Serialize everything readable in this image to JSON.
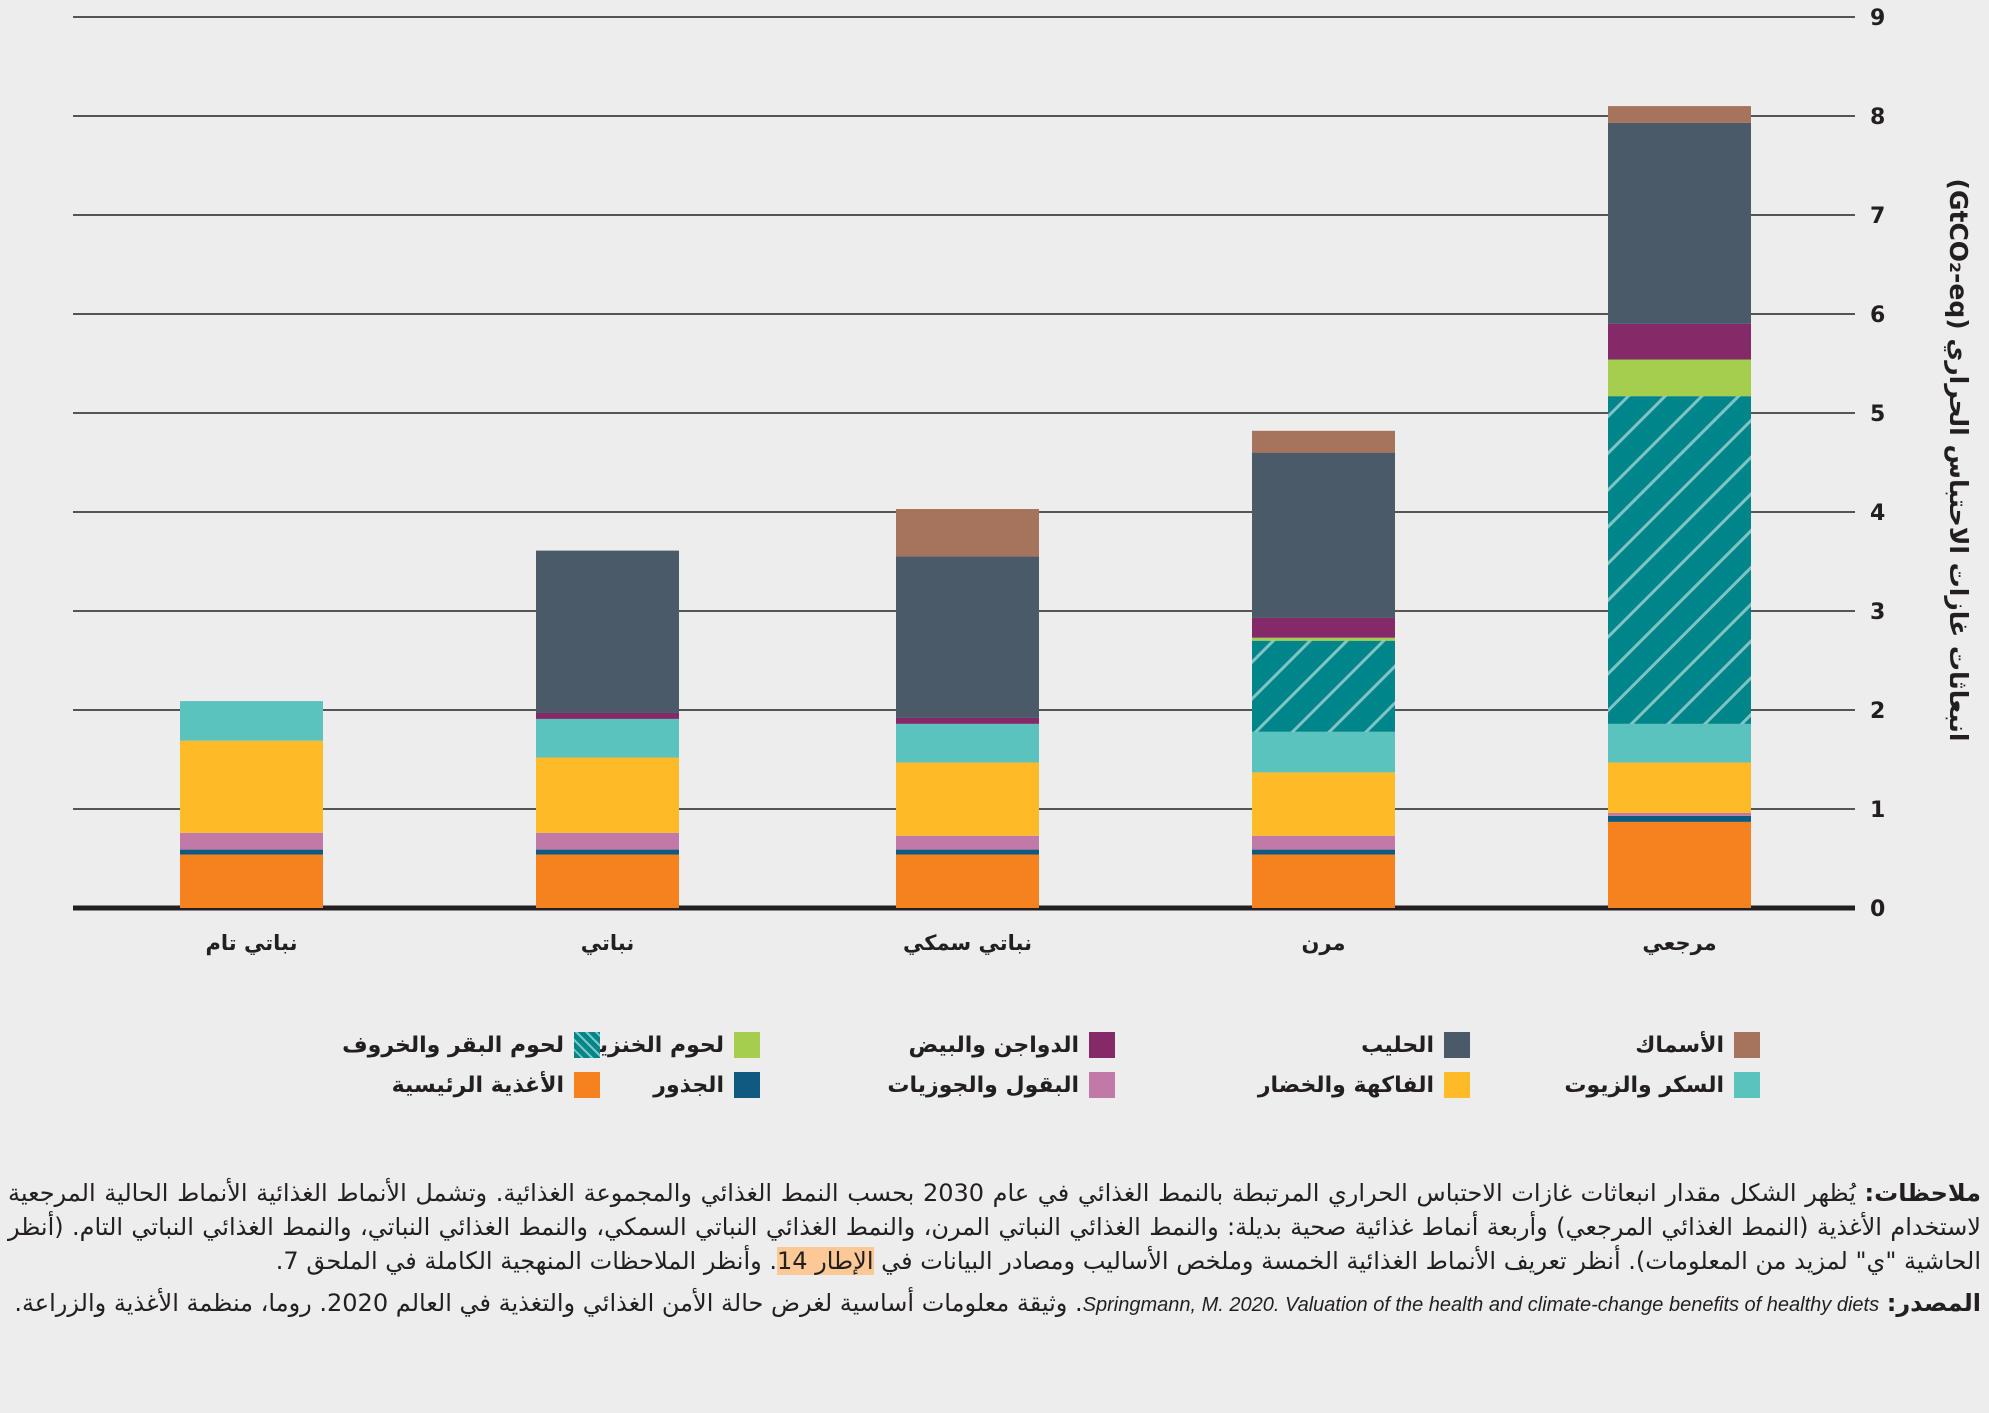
{
  "chart_data": {
    "type": "bar",
    "stacked": true,
    "title": "",
    "ylabel": "انبعاثات غازات الاحتباس الحراري (GtCO₂-eq)",
    "xlabel": "",
    "ylim": [
      0,
      9
    ],
    "yticks": [
      0,
      1,
      2,
      3,
      4,
      5,
      6,
      7,
      8,
      9
    ],
    "grid": true,
    "y_axis_side": "right",
    "categories": [
      "نباتي تام",
      "نباتي",
      "نباتي سمكي",
      "مرن",
      "مرجعي"
    ],
    "series": [
      {
        "name": "الأغذية الرئيسية",
        "color": "#f5821f",
        "values": [
          0.54,
          0.54,
          0.54,
          0.54,
          0.87
        ]
      },
      {
        "name": "الجذور",
        "color": "#0e5a80",
        "values": [
          0.05,
          0.05,
          0.05,
          0.05,
          0.06
        ]
      },
      {
        "name": "البقول والجوزيات",
        "color": "#c17aa8",
        "values": [
          0.17,
          0.17,
          0.14,
          0.14,
          0.03
        ]
      },
      {
        "name": "الفاكهة والخضار",
        "color": "#ffbb27",
        "values": [
          0.93,
          0.76,
          0.74,
          0.64,
          0.51
        ]
      },
      {
        "name": "السكر والزيوت",
        "color": "#5ac3bd",
        "values": [
          0.4,
          0.39,
          0.39,
          0.41,
          0.39
        ]
      },
      {
        "name": "لحوم البقر والخروف",
        "color": "#00868a",
        "pattern": "hatch",
        "values": [
          0,
          0,
          0,
          0.92,
          3.31
        ]
      },
      {
        "name": "لحوم الخنزير",
        "color": "#a5cd4e",
        "values": [
          0,
          0,
          0,
          0.03,
          0.37
        ]
      },
      {
        "name": "الدواجن والبيض",
        "color": "#842a69",
        "values": [
          0,
          0.06,
          0.06,
          0.2,
          0.36
        ]
      },
      {
        "name": "الحليب",
        "color": "#4a5a69",
        "values": [
          0,
          1.64,
          1.63,
          1.67,
          2.03
        ]
      },
      {
        "name": "الأسماك",
        "color": "#a6735c",
        "values": [
          0,
          0,
          0.48,
          0.22,
          0.17
        ]
      }
    ],
    "legend_position": "bottom",
    "legend_order": [
      [
        "الأسماك",
        "الحليب",
        "الدواجن والبيض",
        "لحوم الخنزير",
        "لحوم البقر والخروف"
      ],
      [
        "السكر والزيوت",
        "الفاكهة والخضار",
        "البقول والجوزيات",
        "الجذور",
        "الأغذية الرئيسية"
      ]
    ]
  },
  "notes": {
    "label": "ملاحظات:",
    "text_part1": " يُظهر الشكل مقدار انبعاثات غازات الاحتباس الحراري المرتبطة بالنمط الغذائي في عام 2030 بحسب النمط الغذائي والمجموعة الغذائية. وتشمل الأنماط الغذائية الأنماط الحالية المرجعية لاستخدام الأغذية (النمط الغذائي المرجعي) وأربعة أنماط غذائية صحية بديلة: والنمط الغذائي النباتي المرن، والنمط الغذائي النباتي السمكي، والنمط الغذائي النباتي، والنمط الغذائي النباتي التام. (أنظر الحاشية \"ي\" لمزيد من المعلومات). أنظر تعريف الأنماط الغذائية الخمسة وملخص الأساليب ومصادر البيانات في ",
    "highlight": "الإطار 14",
    "text_part2": ". وأنظر الملاحظات المنهجية الكاملة في الملحق 7."
  },
  "source": {
    "label": "المصدر:",
    "english_ref_plain": "Springmann, M. 2020. ",
    "english_ref_italic": "Valuation of the health and climate-change benefits of healthy diets",
    "arabic_text": ". وثيقة معلومات أساسية لغرض حالة الأمن الغذائي والتغذية في العالم 2020. روما، منظمة الأغذية والزراعة."
  }
}
